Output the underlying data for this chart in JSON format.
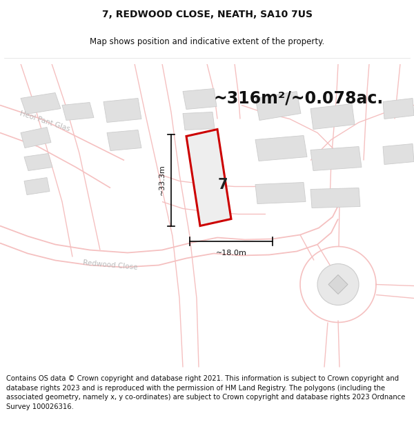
{
  "title": "7, REDWOOD CLOSE, NEATH, SA10 7US",
  "subtitle": "Map shows position and indicative extent of the property.",
  "area_text": "~316m²/~0.078ac.",
  "dim_v": "~33.3m",
  "dim_h": "~18.0m",
  "property_label": "7",
  "footer": "Contains OS data © Crown copyright and database right 2021. This information is subject to Crown copyright and database rights 2023 and is reproduced with the permission of HM Land Registry. The polygons (including the associated geometry, namely x, y co-ordinates) are subject to Crown copyright and database rights 2023 Ordnance Survey 100026316.",
  "map_bg": "#ffffff",
  "plot_bg": "#ffffff",
  "road_color": "#f5c0c0",
  "building_color": "#e0e0e0",
  "building_edge": "#cccccc",
  "property_fill": "#eeeeee",
  "property_edge": "#cc0000",
  "street_label_color": "#aaaaaa",
  "title_fontsize": 10,
  "subtitle_fontsize": 8.5,
  "area_fontsize": 17,
  "dim_fontsize": 8,
  "label_fontsize": 15,
  "footer_fontsize": 7.2,
  "road_lw": 1.0,
  "road_lw_thick": 1.5
}
